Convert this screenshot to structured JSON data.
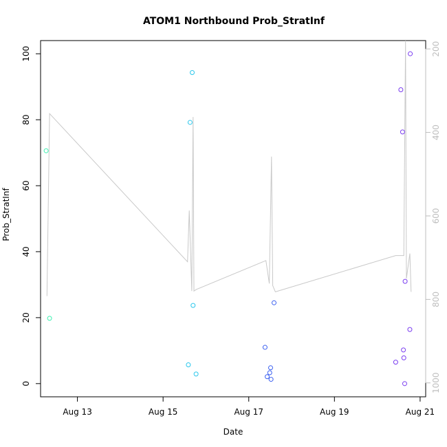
{
  "chart_data": {
    "type": "scatter",
    "title": "ATOM1 Northbound Prob_StratInf",
    "xlabel": "Date",
    "ylabel": "Prob_StratInf",
    "x_ticks": [
      {
        "value": 13,
        "label": "Aug 13"
      },
      {
        "value": 15,
        "label": "Aug 15"
      },
      {
        "value": 17,
        "label": "Aug 17"
      },
      {
        "value": 19,
        "label": "Aug 19"
      },
      {
        "value": 21,
        "label": "Aug 21"
      }
    ],
    "xlim": [
      12.14,
      21.13
    ],
    "ylim": [
      -4,
      104
    ],
    "y_ticks": [
      0,
      20,
      40,
      60,
      80,
      100
    ],
    "y2_ticks": [
      200,
      400,
      600,
      800,
      1000
    ],
    "y2lim": [
      1033.3,
      180
    ],
    "grid": false,
    "points": [
      {
        "x": 12.27,
        "y": 70.6,
        "color": "#3bf0b0"
      },
      {
        "x": 12.35,
        "y": 19.8,
        "color": "#3bf0b0"
      },
      {
        "x": 15.59,
        "y": 5.7,
        "color": "#29c7ec"
      },
      {
        "x": 15.63,
        "y": 79.2,
        "color": "#29c7ec"
      },
      {
        "x": 15.68,
        "y": 94.3,
        "color": "#29c7ec"
      },
      {
        "x": 15.7,
        "y": 23.7,
        "color": "#29c7ec"
      },
      {
        "x": 15.77,
        "y": 2.9,
        "color": "#29c7ec"
      },
      {
        "x": 17.38,
        "y": 11.0,
        "color": "#3a5ff0"
      },
      {
        "x": 17.43,
        "y": 2.1,
        "color": "#3a5ff0"
      },
      {
        "x": 17.49,
        "y": 3.3,
        "color": "#3a5ff0"
      },
      {
        "x": 17.51,
        "y": 4.8,
        "color": "#3a5ff0"
      },
      {
        "x": 17.52,
        "y": 1.3,
        "color": "#3a5ff0"
      },
      {
        "x": 17.59,
        "y": 24.5,
        "color": "#3a5ff0"
      },
      {
        "x": 20.43,
        "y": 6.5,
        "color": "#7a3cf0"
      },
      {
        "x": 20.55,
        "y": 89.1,
        "color": "#7a3cf0"
      },
      {
        "x": 20.59,
        "y": 76.3,
        "color": "#7a3cf0"
      },
      {
        "x": 20.61,
        "y": 10.2,
        "color": "#7a3cf0"
      },
      {
        "x": 20.62,
        "y": 7.8,
        "color": "#7a3cf0"
      },
      {
        "x": 20.64,
        "y": 0.0,
        "color": "#7a3cf0"
      },
      {
        "x": 20.65,
        "y": 31.0,
        "color": "#7a3cf0"
      },
      {
        "x": 20.76,
        "y": 16.4,
        "color": "#7a3cf0"
      },
      {
        "x": 20.77,
        "y": 100.0,
        "color": "#7a3cf0"
      }
    ],
    "line_series": {
      "color": "#c8c8c8",
      "axis": "right",
      "points": [
        {
          "x": 12.29,
          "y": 792
        },
        {
          "x": 12.35,
          "y": 355
        },
        {
          "x": 15.57,
          "y": 710
        },
        {
          "x": 15.61,
          "y": 587
        },
        {
          "x": 15.67,
          "y": 780
        },
        {
          "x": 15.7,
          "y": 363
        },
        {
          "x": 15.72,
          "y": 780
        },
        {
          "x": 15.78,
          "y": 776
        },
        {
          "x": 17.4,
          "y": 707
        },
        {
          "x": 17.48,
          "y": 762
        },
        {
          "x": 17.53,
          "y": 458
        },
        {
          "x": 17.56,
          "y": 767
        },
        {
          "x": 17.62,
          "y": 782
        },
        {
          "x": 20.43,
          "y": 695
        },
        {
          "x": 20.62,
          "y": 695
        },
        {
          "x": 20.66,
          "y": 180
        },
        {
          "x": 20.68,
          "y": 750
        },
        {
          "x": 20.76,
          "y": 690
        },
        {
          "x": 20.79,
          "y": 782
        }
      ]
    }
  }
}
